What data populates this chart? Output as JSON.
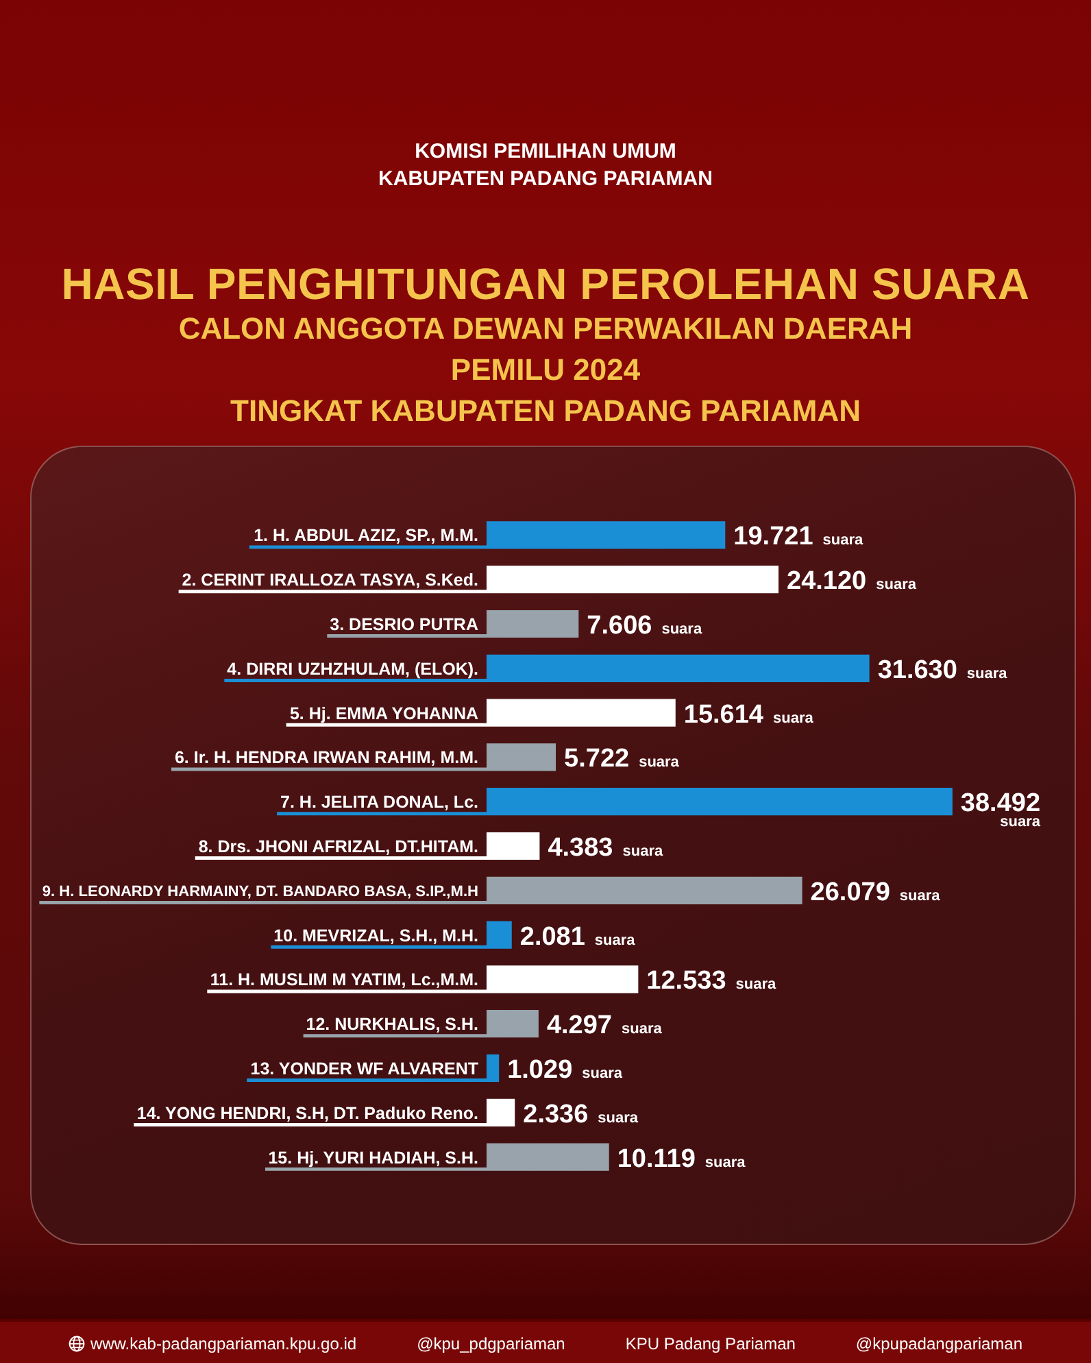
{
  "chart_data": {
    "type": "bar",
    "orientation": "horizontal",
    "title": "HASIL PENGHITUNGAN PEROLEHAN SUARA",
    "subtitle": "CALON ANGGOTA DEWAN PERWAKILAN DAERAH\nPEMILU 2024\nTINGKAT KABUPATEN PADANG PARIAMAN",
    "categories": [
      "1. H. ABDUL AZIZ, SP., M.M.",
      "2. CERINT IRALLOZA TASYA, S.Ked.",
      "3. DESRIO PUTRA",
      "4. DIRRI UZHZHULAM, (ELOK).",
      "5. Hj. EMMA YOHANNA",
      "6. Ir. H. HENDRA IRWAN RAHIM, M.M.",
      "7. H. JELITA DONAL, Lc.",
      "8. Drs. JHONI AFRIZAL, DT.HITAM.",
      "9. H. LEONARDY HARMAINY, DT. BANDARO BASA, S.IP.,M.H",
      "10. MEVRIZAL, S.H., M.H.",
      "11. H. MUSLIM M YATIM, Lc.,M.M.",
      "12. NURKHALIS, S.H.",
      "13. YONDER WF ALVARENT",
      "14. YONG HENDRI, S.H, DT. Paduko Reno.",
      "15. Hj. YURI HADIAH, S.H."
    ],
    "values": [
      19721,
      24120,
      7606,
      31630,
      15614,
      5722,
      38492,
      4383,
      26079,
      2081,
      12533,
      4297,
      1029,
      2336,
      10119
    ],
    "colors": [
      "#1b8fd6",
      "#ffffff",
      "#98a3ab",
      "#1b8fd6",
      "#ffffff",
      "#98a3ab",
      "#1b8fd6",
      "#ffffff",
      "#98a3ab",
      "#1b8fd6",
      "#ffffff",
      "#98a3ab",
      "#1b8fd6",
      "#ffffff",
      "#98a3ab"
    ],
    "value_labels": [
      "19.721 suara",
      "24.120 suara",
      "7.606 suara",
      "31.630 suara",
      "15.614 suara",
      "5.722 suara",
      "38.492 suara",
      "4.383 suara",
      "26.079 suara",
      "2.081 suara",
      "12.533 suara",
      "4.297 suara",
      "1.029 suara",
      "2.336 suara",
      "10.119 suara"
    ],
    "tick_labels": "y",
    "annotations": [
      "KOMISI PEMILIHAN UMUM\nKABUPATEN PADANG PARIAMAN",
      "www.kab-padangpariaman.kpu.go.id",
      "@kpu_pdgpariaman",
      "KPU Padang Pariaman",
      "@kpupadangpariaman"
    ]
  }
}
